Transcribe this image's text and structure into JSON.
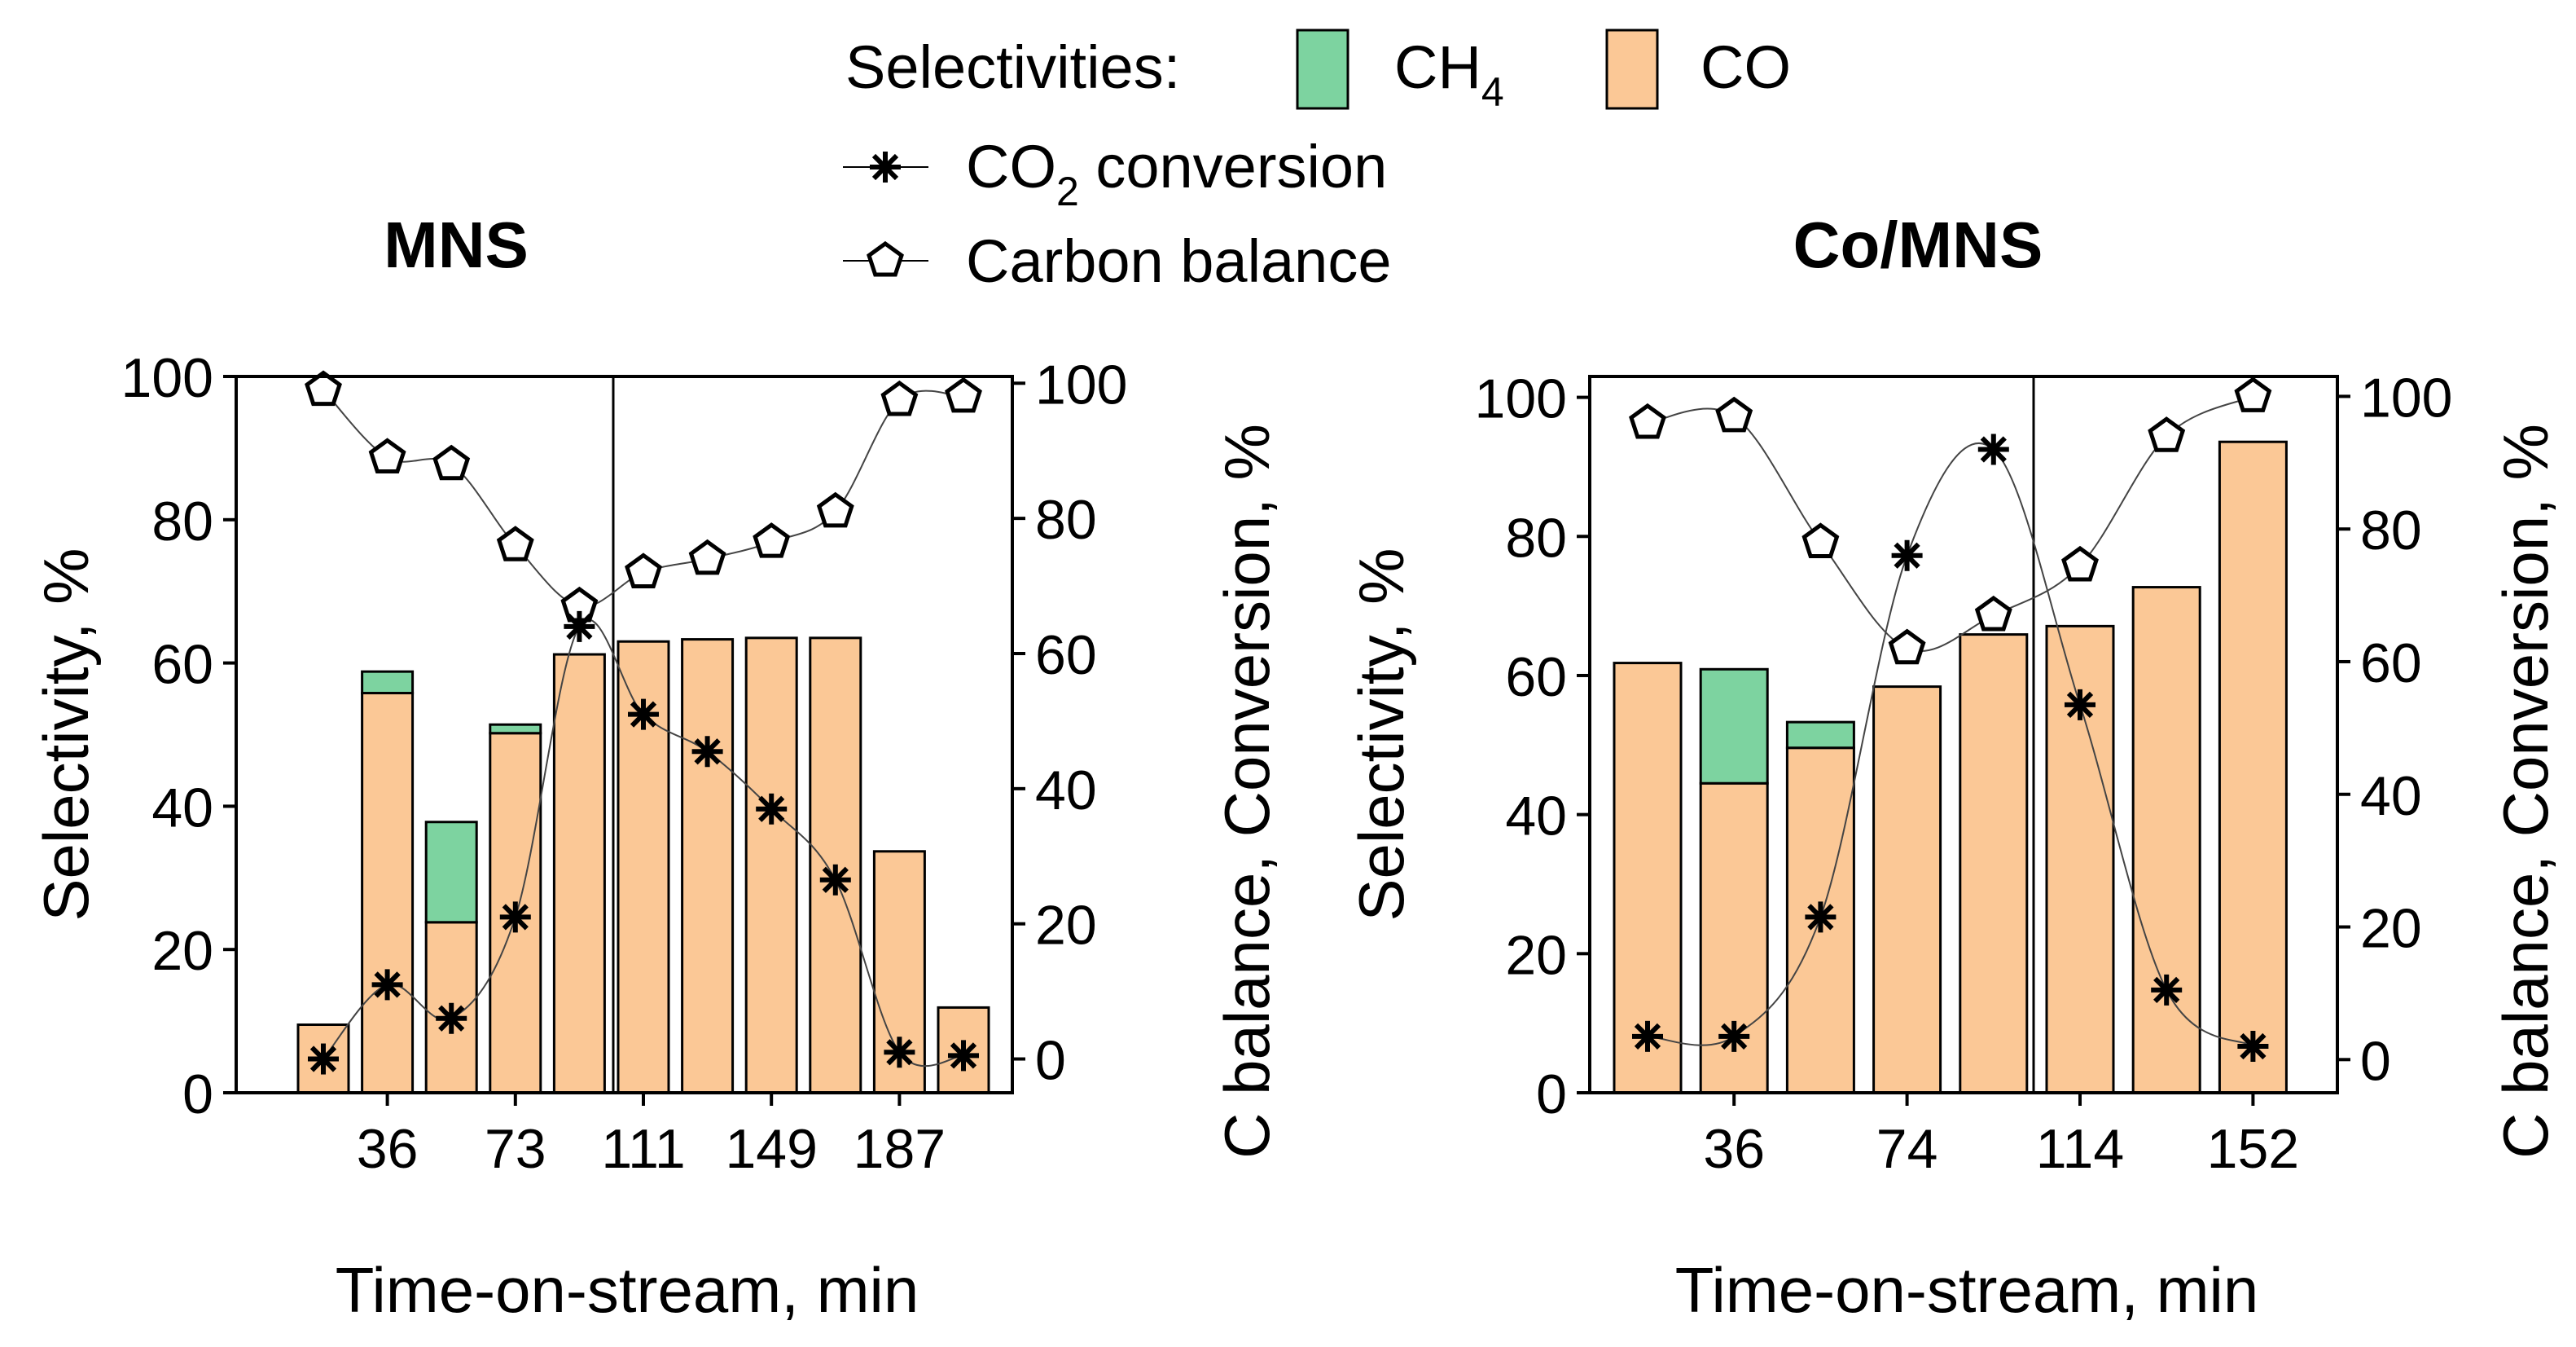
{
  "colors": {
    "ch4": "#7dd3a0",
    "co": "#fbc896",
    "axis": "#000000"
  },
  "legend": {
    "prefix": "Selectivities:",
    "ch4_main": "CH",
    "ch4_sub": "4",
    "co": "CO",
    "conv_main": "CO",
    "conv_sub": "2",
    "conv_rest": " conversion",
    "carbon": "Carbon balance"
  },
  "chart_data": [
    {
      "type": "bar",
      "title": "MNS",
      "xlabel": "Time-on-stream, min",
      "ylabel_left": "Selectivity, %",
      "ylabel_right": "C balance, Conversion, %",
      "xticks": [
        "36",
        "73",
        "111",
        "149",
        "187"
      ],
      "yticks_left": [
        "0",
        "20",
        "40",
        "60",
        "80",
        "100"
      ],
      "yticks_right": [
        "0",
        "20",
        "40",
        "60",
        "80",
        "100"
      ],
      "ylim_left": [
        0,
        100
      ],
      "ylim_right": [
        -5,
        101
      ],
      "series": [
        {
          "name": "CO",
          "values": [
            9.5,
            55.8,
            23.8,
            50.2,
            61.2,
            63.0,
            63.3,
            63.5,
            63.5,
            33.7,
            11.9
          ]
        },
        {
          "name": "CH4",
          "values": [
            0,
            3.0,
            14.0,
            1.2,
            0,
            0,
            0,
            0,
            0,
            0,
            0
          ]
        }
      ],
      "co2_conversion": [
        0,
        11,
        6,
        21,
        64,
        51,
        45.5,
        37,
        26.5,
        1,
        0.5
      ],
      "carbon_balance": [
        99,
        89,
        88,
        76,
        67,
        72,
        74,
        76.5,
        81,
        97.5,
        98
      ]
    },
    {
      "type": "bar",
      "title": "Co/MNS",
      "xlabel": "Time-on-stream, min",
      "ylabel_left": "Selectivity, %",
      "ylabel_right": "C balance, Conversion, %",
      "xticks": [
        "36",
        "74",
        "114",
        "152"
      ],
      "yticks_left": [
        "0",
        "20",
        "40",
        "60",
        "80",
        "100"
      ],
      "yticks_right": [
        "0",
        "20",
        "40",
        "60",
        "80",
        "100"
      ],
      "ylim_left": [
        0,
        103
      ],
      "ylim_right": [
        -5,
        103
      ],
      "series": [
        {
          "name": "CO",
          "values": [
            61.8,
            44.5,
            49.6,
            58.4,
            65.9,
            67.1,
            72.7,
            93.6
          ]
        },
        {
          "name": "CH4",
          "values": [
            0,
            16.4,
            3.7,
            0,
            0,
            0,
            0,
            0
          ]
        }
      ],
      "co2_conversion": [
        3.5,
        3.5,
        21.5,
        76,
        92,
        53.5,
        10.5,
        2
      ],
      "carbon_balance": [
        96,
        97,
        78,
        62,
        67,
        74.5,
        94,
        100
      ]
    }
  ]
}
